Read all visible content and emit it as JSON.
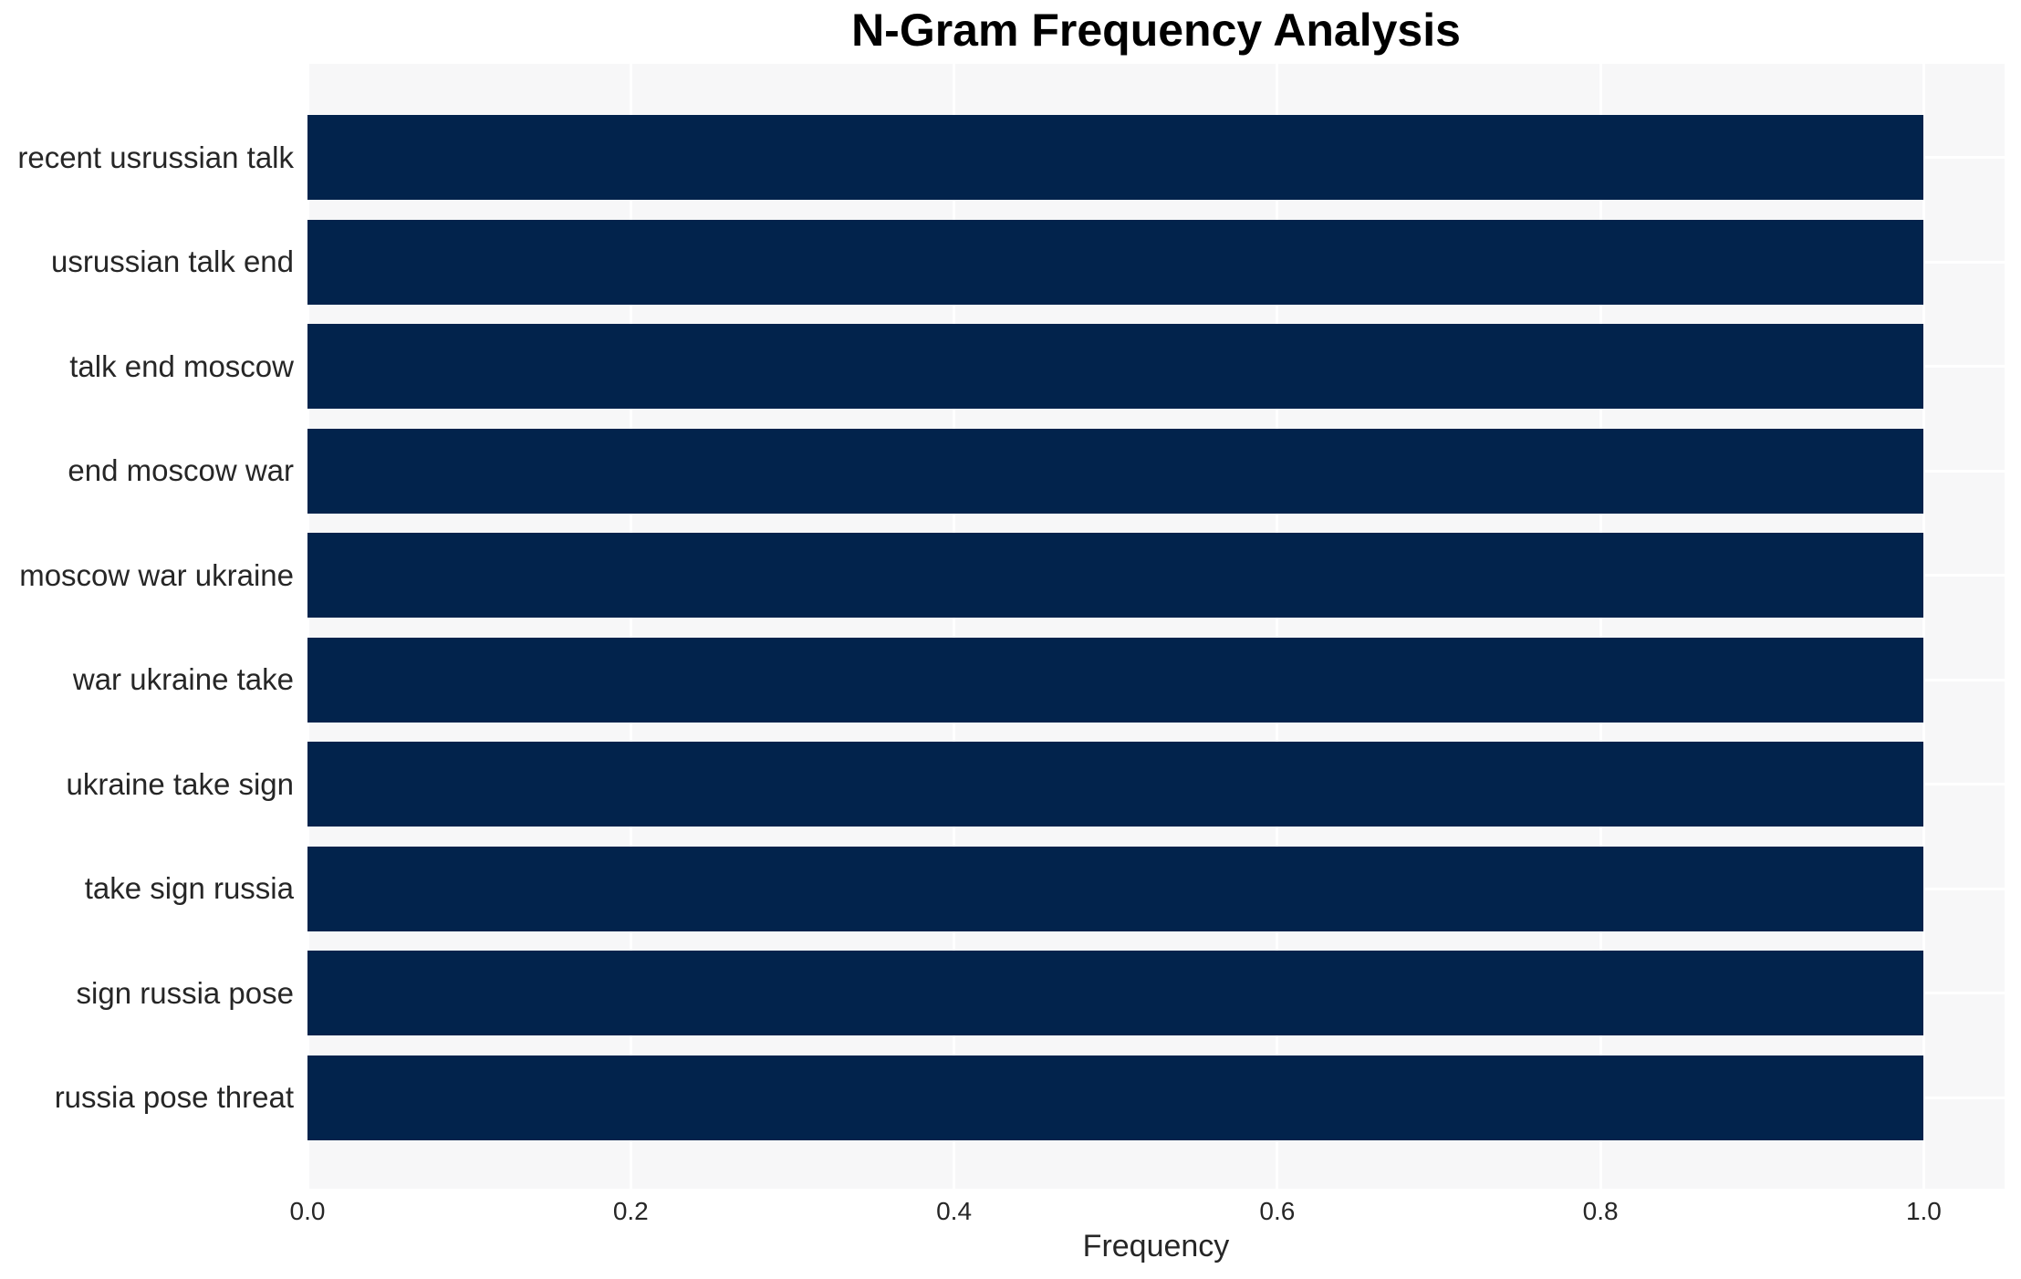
{
  "chart_data": {
    "type": "bar",
    "orientation": "horizontal",
    "title": "N-Gram Frequency Analysis",
    "xlabel": "Frequency",
    "ylabel": "",
    "categories": [
      "recent usrussian talk",
      "usrussian talk end",
      "talk end moscow",
      "end moscow war",
      "moscow war ukraine",
      "war ukraine take",
      "ukraine take sign",
      "take sign russia",
      "sign russia pose",
      "russia pose threat"
    ],
    "values": [
      1.0,
      1.0,
      1.0,
      1.0,
      1.0,
      1.0,
      1.0,
      1.0,
      1.0,
      1.0
    ],
    "xlim": [
      0,
      1.05
    ],
    "xticks": [
      0.0,
      0.2,
      0.4,
      0.6,
      0.8,
      1.0
    ],
    "xtick_labels": [
      "0.0",
      "0.2",
      "0.4",
      "0.6",
      "0.8",
      "1.0"
    ],
    "grid": true,
    "legend": "none",
    "colors": {
      "bar": "#02234C",
      "plot_background": "#f7f7f8",
      "grid_line": "#ffffff",
      "figure_background": "#ffffff",
      "title_text": "#000000",
      "label_text": "#262626"
    }
  }
}
